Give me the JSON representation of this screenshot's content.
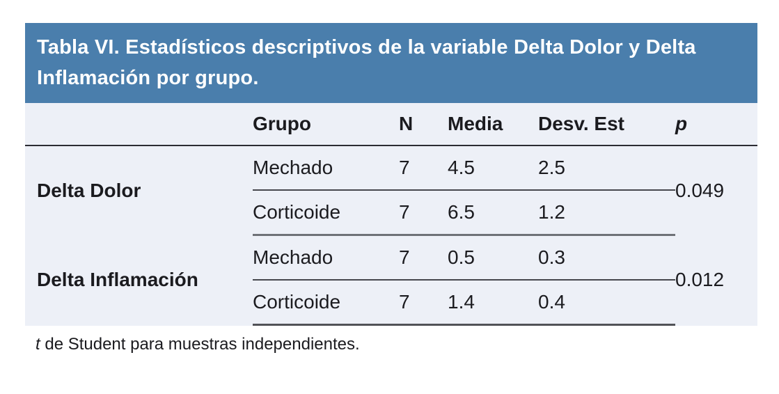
{
  "title": "Tabla VI. Estadísticos descriptivos de la variable Delta Dolor y Delta Inflamación por grupo.",
  "table": {
    "columns": {
      "variable": "",
      "grupo": "Grupo",
      "n": "N",
      "media": "Media",
      "desv_est": "Desv. Est",
      "p": "p"
    },
    "groups": [
      {
        "label": "Delta Dolor",
        "p": "0.049",
        "rows": [
          {
            "grupo": "Mechado",
            "n": "7",
            "media": "4.5",
            "desv_est": "2.5"
          },
          {
            "grupo": "Corticoide",
            "n": "7",
            "media": "6.5",
            "desv_est": "1.2"
          }
        ]
      },
      {
        "label": "Delta Inflamación",
        "p": "0.012",
        "rows": [
          {
            "grupo": "Mechado",
            "n": "7",
            "media": "0.5",
            "desv_est": "0.3"
          },
          {
            "grupo": "Corticoide",
            "n": "7",
            "media": "1.4",
            "desv_est": "0.4"
          }
        ]
      }
    ]
  },
  "footnote": {
    "prefix_italic": "t",
    "rest": " de Student para muestras independientes."
  },
  "colors": {
    "header_bg": "#4A7EAC",
    "row_bg": "#EDF0F7",
    "text": "#1b1b1f"
  }
}
